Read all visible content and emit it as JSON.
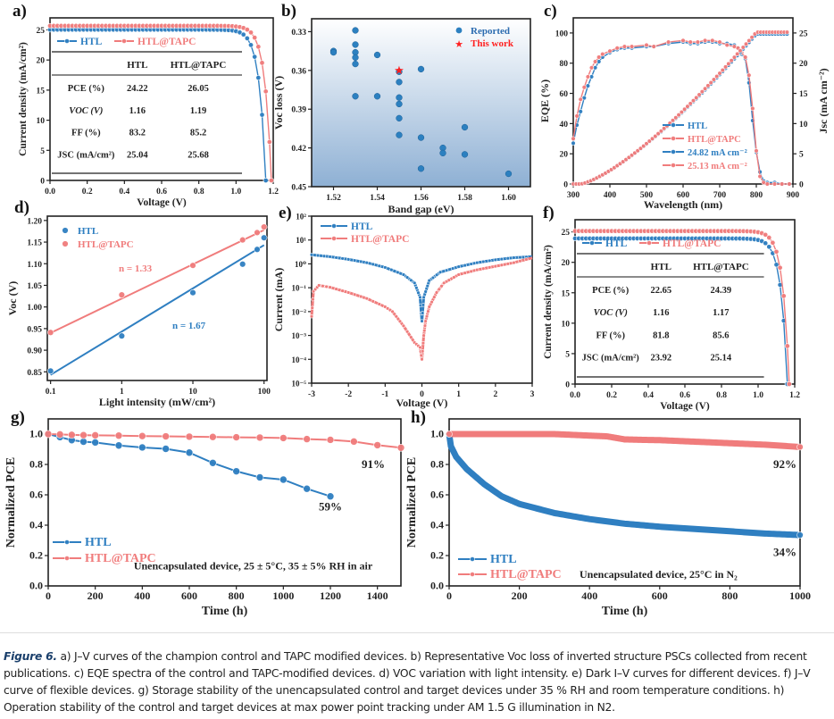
{
  "figure_labels": {
    "a": "a)",
    "b": "b)",
    "c": "c)",
    "d": "d)",
    "e": "e)",
    "f": "f)",
    "g": "g)",
    "h": "h)"
  },
  "colors": {
    "htl": "#2f7fc1",
    "tapc": "#f07c7c",
    "star": "#ff2020",
    "axis": "#222222"
  },
  "caption": {
    "figure_ref": "Figure 6.",
    "text": " a) J–V curves of the champion control and TAPC modified devices. b) Representative Voc loss of inverted structure PSCs collected from recent publications. c) EQE spectra of the control and TAPC-modified devices. d) VOC variation with light intensity. e) Dark I–V curves for different devices. f) J–V curve of flexible devices. g) Storage stability of the unencapsulated control and target devices under 35 % RH and room temperature conditions. h) Operation stability of the control and target devices at max power point tracking under AM 1.5 G illumination in N2."
  },
  "chart_data": [
    {
      "id": "a",
      "type": "line",
      "title": "",
      "xlabel": "Voltage (V)",
      "ylabel": "Current density (mA/cm²)",
      "xlim": [
        0,
        1.2
      ],
      "ylim": [
        0,
        27
      ],
      "xticks": [
        "0.0",
        "0.2",
        "0.4",
        "0.6",
        "0.8",
        "1.0",
        "1.2"
      ],
      "yticks": [
        "0",
        "5",
        "10",
        "15",
        "20",
        "25"
      ],
      "legend": [
        "HTL",
        "HTL@TAPC"
      ],
      "legend_position": "top-left",
      "series": [
        {
          "name": "HTL",
          "jsc": 25.04,
          "voc": 1.16,
          "knee": 0.96
        },
        {
          "name": "HTL@TAPC",
          "jsc": 25.68,
          "voc": 1.19,
          "knee": 1.0
        }
      ],
      "table": {
        "header": [
          "",
          "HTL",
          "HTL@TAPC"
        ],
        "rows": [
          [
            "PCE (%)",
            "24.22",
            "26.05"
          ],
          [
            "VOC (V)",
            "1.16",
            "1.19"
          ],
          [
            "FF (%)",
            "83.2",
            "85.2"
          ],
          [
            "JSC (mA/cm²)",
            "25.04",
            "25.68"
          ]
        ]
      }
    },
    {
      "id": "b",
      "type": "scatter",
      "xlabel": "Band gap (eV)",
      "ylabel": "Voc loss (V)",
      "xlim": [
        1.51,
        1.61
      ],
      "ylim": [
        0.45,
        0.32
      ],
      "y_inverted": true,
      "xticks": [
        "1.52",
        "1.54",
        "1.56",
        "1.58",
        "1.60"
      ],
      "yticks": [
        "0.33",
        "0.36",
        "0.39",
        "0.42",
        "0.45"
      ],
      "legend": [
        "Reported",
        "This work"
      ],
      "legend_position": "top-right",
      "series": [
        {
          "name": "Reported",
          "points": [
            [
              1.52,
              0.345
            ],
            [
              1.52,
              0.346
            ],
            [
              1.53,
              0.329
            ],
            [
              1.53,
              0.34
            ],
            [
              1.53,
              0.346
            ],
            [
              1.53,
              0.35
            ],
            [
              1.53,
              0.355
            ],
            [
              1.53,
              0.38
            ],
            [
              1.54,
              0.348
            ],
            [
              1.54,
              0.38
            ],
            [
              1.55,
              0.361
            ],
            [
              1.55,
              0.369
            ],
            [
              1.55,
              0.381
            ],
            [
              1.55,
              0.386
            ],
            [
              1.55,
              0.397
            ],
            [
              1.55,
              0.41
            ],
            [
              1.56,
              0.359
            ],
            [
              1.56,
              0.412
            ],
            [
              1.56,
              0.436
            ],
            [
              1.57,
              0.42
            ],
            [
              1.57,
              0.424
            ],
            [
              1.58,
              0.404
            ],
            [
              1.58,
              0.425
            ],
            [
              1.6,
              0.44
            ]
          ]
        },
        {
          "name": "This work",
          "points": [
            [
              1.55,
              0.36
            ]
          ]
        }
      ]
    },
    {
      "id": "c",
      "type": "line",
      "xlabel": "Wavelength (nm)",
      "ylabel": "EQE (%)",
      "y2label": "Jsc (mA cm⁻²)",
      "xlim": [
        300,
        900
      ],
      "ylim": [
        0,
        110
      ],
      "y2lim": [
        0,
        27.5
      ],
      "xticks": [
        "300",
        "400",
        "500",
        "600",
        "700",
        "800",
        "900"
      ],
      "yticks": [
        "0",
        "20",
        "40",
        "60",
        "80",
        "100"
      ],
      "y2ticks": [
        "0",
        "5",
        "10",
        "15",
        "20",
        "25"
      ],
      "legend": [
        "HTL",
        "HTL@TAPC",
        "24.82 mA cm⁻²",
        "25.13 mA cm⁻²"
      ],
      "legend_position": "bottom-center",
      "series": [
        {
          "name": "HTL EQE",
          "x": [
            300,
            310,
            320,
            330,
            340,
            350,
            360,
            370,
            380,
            400,
            420,
            440,
            460,
            500,
            520,
            560,
            600,
            620,
            640,
            660,
            680,
            700,
            720,
            740,
            750,
            760,
            770,
            780,
            790,
            800,
            810,
            820,
            830,
            850,
            870,
            890
          ],
          "y": [
            27,
            39,
            48,
            57,
            65,
            71,
            77,
            81,
            84,
            87,
            89,
            90,
            90,
            91,
            91,
            93,
            94,
            93,
            93,
            94,
            94,
            93,
            93,
            92,
            90,
            86,
            83,
            67,
            42,
            21,
            8,
            2,
            1,
            1,
            0,
            0
          ]
        },
        {
          "name": "HTL@TAPC EQE",
          "x": [
            300,
            310,
            320,
            330,
            340,
            350,
            360,
            370,
            380,
            400,
            420,
            440,
            460,
            500,
            520,
            560,
            600,
            620,
            640,
            660,
            680,
            700,
            720,
            740,
            750,
            760,
            770,
            780,
            790,
            800,
            810,
            820,
            830,
            850,
            870,
            890
          ],
          "y": [
            30,
            45,
            56,
            64,
            71,
            77,
            81,
            84,
            86,
            88,
            90,
            91,
            91,
            92,
            91,
            94,
            95,
            94,
            94,
            95,
            95,
            94,
            92,
            91,
            90,
            87,
            84,
            72,
            50,
            22,
            5,
            1,
            0,
            0,
            0,
            0
          ]
        },
        {
          "name": "24.82 mA cm⁻²",
          "final": 24.82
        },
        {
          "name": "25.13 mA cm⁻²",
          "final": 25.13
        }
      ]
    },
    {
      "id": "d",
      "type": "scatter",
      "xlabel": "Light intensity (mW/cm²)",
      "ylabel": "Voc (V)",
      "xscale": "log",
      "xlim": [
        0.09,
        110
      ],
      "ylim": [
        0.83,
        1.21
      ],
      "xticks": [
        "0.1",
        "1",
        "10",
        "100"
      ],
      "yticks": [
        "0.85",
        "0.90",
        "0.95",
        "1.00",
        "1.05",
        "1.10",
        "1.15",
        "1.20"
      ],
      "legend": [
        "HTL",
        "HTL@TAPC"
      ],
      "legend_position": "top-left",
      "annotations": [
        "n = 1.33",
        "n = 1.67"
      ],
      "series": [
        {
          "name": "HTL",
          "x": [
            0.1,
            1,
            10,
            50,
            80,
            100
          ],
          "y": [
            0.852,
            0.933,
            1.033,
            1.099,
            1.133,
            1.16
          ],
          "fit": [
            0.843,
            1.143
          ]
        },
        {
          "name": "HTL@TAPC",
          "x": [
            0.1,
            1,
            10,
            50,
            80,
            100
          ],
          "y": [
            0.941,
            1.028,
            1.096,
            1.155,
            1.172,
            1.185
          ],
          "fit": [
            0.94,
            1.178
          ]
        }
      ]
    },
    {
      "id": "e",
      "type": "line",
      "xlabel": "Voltage (V)",
      "ylabel": "Current (mA)",
      "yscale": "log",
      "xlim": [
        -3,
        3
      ],
      "ylim_exp": [
        -5,
        2
      ],
      "xticks": [
        "-3",
        "-2",
        "-1",
        "0",
        "1",
        "2",
        "3"
      ],
      "yticks": [
        "10⁻⁵",
        "10⁻⁴",
        "10⁻³",
        "10⁻²",
        "10⁻¹",
        "10⁰",
        "10¹",
        "10²"
      ],
      "legend": [
        "HTL",
        "HTL@TAPC"
      ],
      "legend_position": "top-left",
      "series": [
        {
          "name": "HTL",
          "x": [
            -3,
            -2.5,
            -2,
            -1.5,
            -1,
            -0.5,
            -0.2,
            -0.05,
            0,
            0.05,
            0.2,
            0.5,
            1,
            1.5,
            2,
            2.5,
            3
          ],
          "log10y": [
            0.38,
            0.3,
            0.19,
            0.05,
            -0.15,
            -0.45,
            -0.8,
            -1.4,
            -2.4,
            -1.4,
            -0.7,
            -0.35,
            -0.12,
            0.05,
            0.17,
            0.26,
            0.3
          ]
        },
        {
          "name": "HTL@TAPC",
          "x": [
            -3,
            -2.95,
            -2.8,
            -2.5,
            -2,
            -1.5,
            -1,
            -0.8,
            -0.5,
            -0.2,
            -0.05,
            0,
            0.05,
            0.1,
            0.2,
            0.4,
            0.6,
            1,
            1.5,
            2,
            2.5,
            3
          ],
          "log10y": [
            -2.2,
            -1.15,
            -0.9,
            -0.98,
            -1.2,
            -1.45,
            -1.8,
            -2.0,
            -2.6,
            -3.3,
            -3.5,
            -4.0,
            -3.0,
            -2.4,
            -1.8,
            -1.2,
            -0.8,
            -0.45,
            -0.25,
            -0.1,
            0.05,
            0.25
          ]
        }
      ]
    },
    {
      "id": "f",
      "type": "line",
      "xlabel": "Voltage (V)",
      "ylabel": "Current density (mA/cm²)",
      "xlim": [
        0,
        1.2
      ],
      "ylim": [
        0,
        27
      ],
      "xticks": [
        "0.0",
        "0.2",
        "0.4",
        "0.6",
        "0.8",
        "1.0",
        "1.2"
      ],
      "yticks": [
        "0",
        "5",
        "10",
        "15",
        "20",
        "25"
      ],
      "legend": [
        "HTL",
        "HTL@TAPC"
      ],
      "legend_position": "top-left",
      "series": [
        {
          "name": "HTL",
          "jsc": 23.92,
          "voc": 1.16,
          "knee": 0.95
        },
        {
          "name": "HTL@TAPC",
          "jsc": 25.14,
          "voc": 1.17,
          "knee": 0.98
        }
      ],
      "table": {
        "header": [
          "",
          "HTL",
          "HTL@TAPC"
        ],
        "rows": [
          [
            "PCE (%)",
            "22.65",
            "24.39"
          ],
          [
            "VOC (V)",
            "1.16",
            "1.17"
          ],
          [
            "FF (%)",
            "81.8",
            "85.6"
          ],
          [
            "JSC (mA/cm²)",
            "23.92",
            "25.14"
          ]
        ]
      }
    },
    {
      "id": "g",
      "type": "line",
      "xlabel": "Time (h)",
      "ylabel": "Normalized PCE",
      "xlim": [
        0,
        1500
      ],
      "ylim": [
        0,
        1.1
      ],
      "xticks": [
        "0",
        "200",
        "400",
        "600",
        "800",
        "1000",
        "1200",
        "1400"
      ],
      "yticks": [
        "0.0",
        "0.2",
        "0.4",
        "0.6",
        "0.8",
        "1.0"
      ],
      "legend": [
        "HTL",
        "HTL@TAPC"
      ],
      "legend_position": "bottom-left",
      "annotations": [
        "91%",
        "59%",
        "Unencapsulated device, 25 ± 5°C, 35 ± 5% RH in air"
      ],
      "series": [
        {
          "name": "HTL",
          "x": [
            0,
            50,
            100,
            150,
            200,
            300,
            400,
            500,
            600,
            700,
            800,
            900,
            1000,
            1100,
            1200
          ],
          "y": [
            1.0,
            0.98,
            0.96,
            0.95,
            0.945,
            0.925,
            0.912,
            0.903,
            0.878,
            0.81,
            0.755,
            0.715,
            0.7,
            0.64,
            0.59
          ]
        },
        {
          "name": "HTL@TAPC",
          "x": [
            0,
            50,
            100,
            150,
            200,
            300,
            400,
            500,
            600,
            700,
            800,
            900,
            1000,
            1100,
            1200,
            1300,
            1400,
            1500
          ],
          "y": [
            1.0,
            0.998,
            0.995,
            0.993,
            0.992,
            0.99,
            0.987,
            0.985,
            0.983,
            0.981,
            0.979,
            0.977,
            0.974,
            0.967,
            0.962,
            0.951,
            0.927,
            0.91
          ]
        }
      ]
    },
    {
      "id": "h",
      "type": "line",
      "xlabel": "Time (h)",
      "ylabel": "Normalized PCE",
      "xlim": [
        0,
        1000
      ],
      "ylim": [
        0,
        1.1
      ],
      "xticks": [
        "0",
        "200",
        "400",
        "600",
        "800",
        "1000"
      ],
      "yticks": [
        "0.0",
        "0.2",
        "0.4",
        "0.6",
        "0.8",
        "1.0"
      ],
      "legend": [
        "HTL",
        "HTL@TAPC"
      ],
      "legend_position": "bottom-left",
      "annotations": [
        "92%",
        "34%",
        "Unencapsulated device, 25°C in N₂"
      ],
      "series": [
        {
          "name": "HTL",
          "x": [
            0,
            5,
            20,
            50,
            100,
            150,
            200,
            300,
            400,
            500,
            600,
            700,
            800,
            900,
            1000
          ],
          "y": [
            1.0,
            0.92,
            0.85,
            0.77,
            0.67,
            0.59,
            0.54,
            0.48,
            0.44,
            0.41,
            0.39,
            0.375,
            0.36,
            0.345,
            0.335
          ]
        },
        {
          "name": "HTL@TAPC",
          "x": [
            0,
            100,
            200,
            300,
            400,
            450,
            500,
            550,
            600,
            700,
            800,
            900,
            1000
          ],
          "y": [
            1.0,
            1.0,
            1.0,
            1.0,
            0.99,
            0.985,
            0.965,
            0.962,
            0.96,
            0.95,
            0.94,
            0.93,
            0.915
          ]
        }
      ]
    }
  ]
}
